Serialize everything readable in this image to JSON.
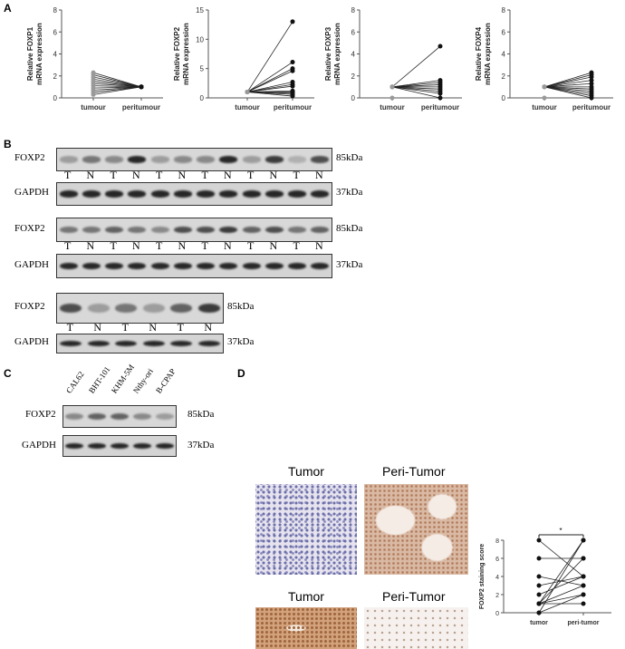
{
  "panels": {
    "a": "A",
    "b": "B",
    "c": "C",
    "d": "D"
  },
  "chart_data": [
    {
      "type": "line",
      "title": "",
      "ylabel": [
        "Relative FOXP1",
        "mRNA expression"
      ],
      "categories": [
        "tumour",
        "peritumour"
      ],
      "ylim": [
        0,
        8
      ],
      "yticks": [
        0,
        2,
        4,
        6,
        8
      ],
      "pairs": [
        [
          2.3,
          1
        ],
        [
          2.1,
          1
        ],
        [
          1.9,
          1
        ],
        [
          1.7,
          1
        ],
        [
          1.5,
          1
        ],
        [
          1.3,
          1
        ],
        [
          1.1,
          1
        ],
        [
          0.9,
          1
        ],
        [
          0.7,
          1
        ],
        [
          0.5,
          1
        ],
        [
          0.3,
          1
        ]
      ]
    },
    {
      "type": "line",
      "title": "",
      "ylabel": [
        "Relative FOXP2",
        "mRNA expression"
      ],
      "categories": [
        "tumour",
        "peritumour"
      ],
      "ylim": [
        0,
        15
      ],
      "yticks": [
        0,
        5,
        10,
        15
      ],
      "pairs": [
        [
          1,
          13
        ],
        [
          1,
          6.1
        ],
        [
          1,
          5
        ],
        [
          1,
          4.6
        ],
        [
          1,
          2.7
        ],
        [
          1,
          2.3
        ],
        [
          1,
          2
        ],
        [
          1,
          1.2
        ],
        [
          1,
          1
        ],
        [
          1,
          0.8
        ],
        [
          1,
          0.6
        ],
        [
          1,
          0.3
        ]
      ]
    },
    {
      "type": "line",
      "title": "",
      "ylabel": [
        "Relative FOXP3",
        "mRNA expression"
      ],
      "categories": [
        "tumour",
        "peritumour"
      ],
      "ylim": [
        0,
        8
      ],
      "yticks": [
        0,
        2,
        4,
        6,
        8
      ],
      "pairs": [
        [
          1,
          4.7
        ],
        [
          1,
          1.6
        ],
        [
          1,
          1.4
        ],
        [
          1,
          1.2
        ],
        [
          1,
          1
        ],
        [
          1,
          0.8
        ],
        [
          1,
          0.6
        ],
        [
          1,
          0.4
        ],
        [
          1,
          0
        ],
        [
          0,
          null
        ]
      ]
    },
    {
      "type": "line",
      "title": "",
      "ylabel": [
        "Relative FOXP4",
        "mRNA expression"
      ],
      "categories": [
        "tumour",
        "peritumour"
      ],
      "ylim": [
        0,
        8
      ],
      "yticks": [
        0,
        2,
        4,
        6,
        8
      ],
      "pairs": [
        [
          1,
          2.3
        ],
        [
          1,
          2.1
        ],
        [
          1,
          1.9
        ],
        [
          1,
          1.6
        ],
        [
          1,
          1.3
        ],
        [
          1,
          1
        ],
        [
          1,
          0.8
        ],
        [
          1,
          0.6
        ],
        [
          1,
          0.4
        ],
        [
          1,
          0.2
        ],
        [
          1,
          0
        ],
        [
          0,
          null
        ]
      ]
    },
    {
      "type": "line",
      "title": "",
      "ylabel": [
        "FOXP2 staining score"
      ],
      "categories": [
        "tumor",
        "peri-tumor"
      ],
      "ylim": [
        0,
        8
      ],
      "yticks": [
        0,
        2,
        4,
        6,
        8
      ],
      "significance": "*",
      "pairs": [
        [
          8,
          4
        ],
        [
          6,
          6
        ],
        [
          4,
          3
        ],
        [
          3,
          4
        ],
        [
          2,
          4
        ],
        [
          1,
          8
        ],
        [
          1,
          3
        ],
        [
          1,
          2
        ],
        [
          1,
          1
        ],
        [
          0,
          8
        ],
        [
          0,
          2
        ],
        [
          1,
          6
        ]
      ]
    }
  ],
  "blots_b": [
    {
      "protein": "FOXP2",
      "kda": "85kDa",
      "control": "GAPDH",
      "control_kda": "37kDa",
      "lanes": [
        "T",
        "N",
        "T",
        "N",
        "T",
        "N",
        "T",
        "N",
        "T",
        "N",
        "T",
        "N"
      ],
      "intensity": [
        0.3,
        0.5,
        0.4,
        0.9,
        0.3,
        0.4,
        0.4,
        0.9,
        0.3,
        0.8,
        0.2,
        0.7
      ]
    },
    {
      "protein": "FOXP2",
      "kda": "85kDa",
      "control": "GAPDH",
      "control_kda": "37kDa",
      "lanes": [
        "T",
        "N",
        "T",
        "N",
        "T",
        "N",
        "T",
        "N",
        "T",
        "N",
        "T",
        "N"
      ],
      "intensity": [
        0.5,
        0.5,
        0.6,
        0.5,
        0.4,
        0.7,
        0.7,
        0.8,
        0.6,
        0.7,
        0.5,
        0.6
      ]
    },
    {
      "protein": "FOXP2",
      "kda": "85kDa",
      "control": "GAPDH",
      "control_kda": "37kDa",
      "lanes": [
        "T",
        "N",
        "T",
        "N",
        "T",
        "N"
      ],
      "intensity": [
        0.7,
        0.3,
        0.5,
        0.3,
        0.6,
        0.8
      ]
    }
  ],
  "blot_c": {
    "protein": "FOXP2",
    "kda": "85kDa",
    "control": "GAPDH",
    "control_kda": "37kDa",
    "lines": [
      "CAL62",
      "BHT-101",
      "KHM-5M",
      "Nthy-ori",
      "B-CPAP"
    ],
    "intensity": [
      0.4,
      0.6,
      0.6,
      0.4,
      0.3
    ]
  },
  "histology": {
    "titles": [
      "Tumor",
      "Peri-Tumor",
      "Tumor",
      "Peri-Tumor"
    ]
  }
}
